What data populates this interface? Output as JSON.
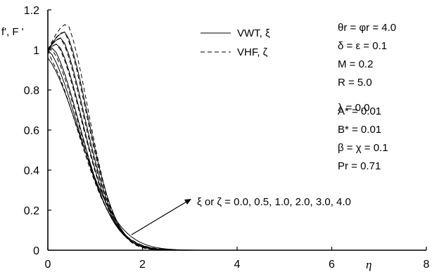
{
  "chart_data": {
    "type": "line",
    "xlabel": "η",
    "ylabel": "f', F '",
    "xlim": [
      0,
      8
    ],
    "ylim": [
      0,
      1.2
    ],
    "xticks": [
      "0",
      "2",
      "4",
      "6",
      "8"
    ],
    "yticks": [
      "0",
      "0.2",
      "0.4",
      "0.6",
      "0.8",
      "1",
      "1.2"
    ],
    "grid": false,
    "legend_position": "top-right",
    "legend": [
      {
        "label": "VWT, ξ",
        "style": "solid"
      },
      {
        "label": "VHF, ζ",
        "style": "dashed"
      }
    ],
    "parameters": [
      "θr = φr = 4.0",
      "δ = ε = 0.1",
      "M = 0.2",
      "R = 5.0",
      "λ = 0.0",
      "A* = 0.01",
      "B* = 0.01",
      "β = χ = 0.1",
      "Pr = 0.71"
    ],
    "annotation": "ξ or ζ = 0.0, 0.5, 1.0, 2.0, 3.0, 4.0",
    "shape": {
      "a": 1.4,
      "xmax": 8,
      "samples": 90
    },
    "series": [
      {
        "style": "solid",
        "peak_y": 0.96,
        "x_peak": 0.0,
        "tail_decay": 1.15
      },
      {
        "style": "solid",
        "peak_y": 0.99,
        "x_peak": 0.05,
        "tail_decay": 1.05
      },
      {
        "style": "solid",
        "peak_y": 1.01,
        "x_peak": 0.12,
        "tail_decay": 0.98
      },
      {
        "style": "solid",
        "peak_y": 1.03,
        "x_peak": 0.22,
        "tail_decay": 0.92
      },
      {
        "style": "solid",
        "peak_y": 1.06,
        "x_peak": 0.3,
        "tail_decay": 0.87
      },
      {
        "style": "solid",
        "peak_y": 1.09,
        "x_peak": 0.38,
        "tail_decay": 0.82
      },
      {
        "style": "dashed",
        "peak_y": 0.97,
        "x_peak": 0.02,
        "tail_decay": 1.08
      },
      {
        "style": "dashed",
        "peak_y": 1.0,
        "x_peak": 0.1,
        "tail_decay": 1.0
      },
      {
        "style": "dashed",
        "peak_y": 1.03,
        "x_peak": 0.2,
        "tail_decay": 0.93
      },
      {
        "style": "dashed",
        "peak_y": 1.06,
        "x_peak": 0.28,
        "tail_decay": 0.87
      },
      {
        "style": "dashed",
        "peak_y": 1.09,
        "x_peak": 0.36,
        "tail_decay": 0.82
      },
      {
        "style": "dashed",
        "peak_y": 1.13,
        "x_peak": 0.42,
        "tail_decay": 0.77
      }
    ]
  }
}
